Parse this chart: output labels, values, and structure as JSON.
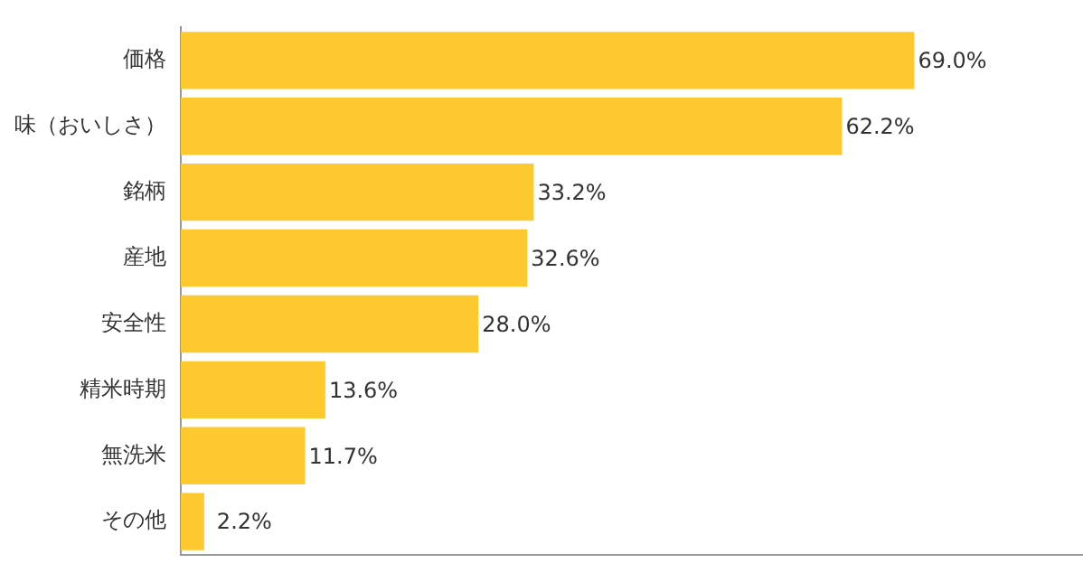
{
  "chart_data": {
    "type": "bar",
    "orientation": "horizontal",
    "categories": [
      "価格",
      "味（おいしさ）",
      "銘柄",
      "産地",
      "安全性",
      "精米時期",
      "無洗米",
      "その他"
    ],
    "values": [
      69.0,
      62.2,
      33.2,
      32.6,
      28.0,
      13.6,
      11.7,
      2.2
    ],
    "value_labels": [
      "69.0%",
      "62.2%",
      "33.2%",
      "32.6%",
      "28.0%",
      "13.6%",
      "11.7%",
      "2.2%"
    ],
    "color": "#fec92e",
    "grid": false,
    "legend": false,
    "tick_labels": "y"
  }
}
